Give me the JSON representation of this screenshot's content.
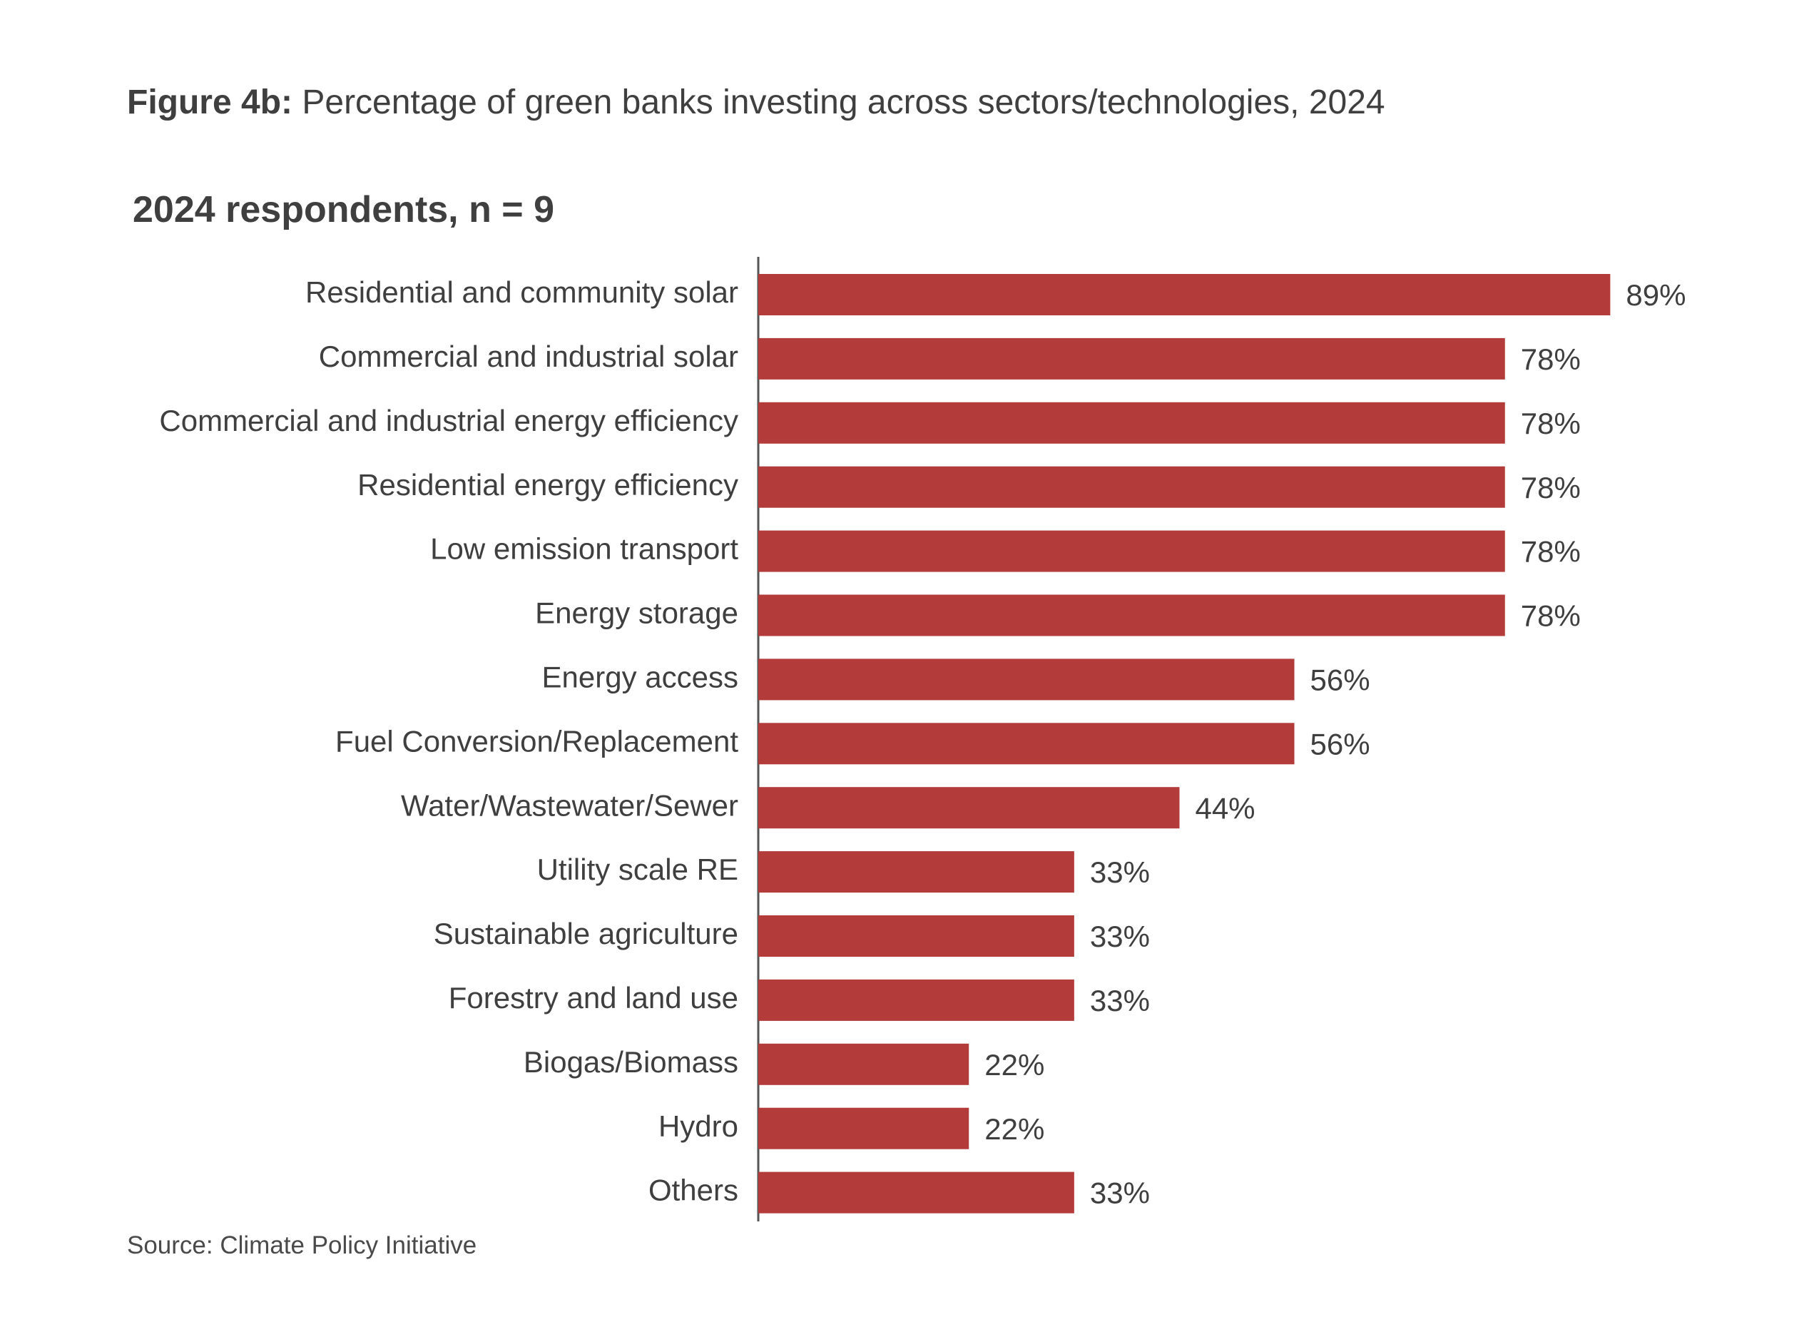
{
  "figure": {
    "label": "Figure 4b:",
    "caption": "Percentage of green banks investing across sectors/technologies, 2024"
  },
  "source": "Source: Climate Policy Initiative",
  "colors": {
    "bar": "#b33b39",
    "text": "#3f3f3f",
    "axis": "#555555"
  },
  "chart_data": {
    "type": "bar",
    "orientation": "horizontal",
    "subtitle": "2024 respondents, n = 9",
    "categories": [
      "Residential and community solar",
      "Commercial and industrial solar",
      "Commercial and industrial energy efficiency",
      "Residential energy efficiency",
      "Low emission transport",
      "Energy storage",
      "Energy access",
      "Fuel Conversion/Replacement",
      "Water/Wastewater/Sewer",
      "Utility scale RE",
      "Sustainable agriculture",
      "Forestry and land use",
      "Biogas/Biomass",
      "Hydro",
      "Others"
    ],
    "values": [
      89,
      78,
      78,
      78,
      78,
      78,
      56,
      56,
      44,
      33,
      33,
      33,
      22,
      22,
      33
    ],
    "value_labels": [
      "89%",
      "78%",
      "78%",
      "78%",
      "78%",
      "78%",
      "56%",
      "56%",
      "44%",
      "33%",
      "33%",
      "33%",
      "22%",
      "22%",
      "33%"
    ],
    "xlim": [
      0,
      100
    ],
    "grid": false,
    "legend": "none"
  }
}
